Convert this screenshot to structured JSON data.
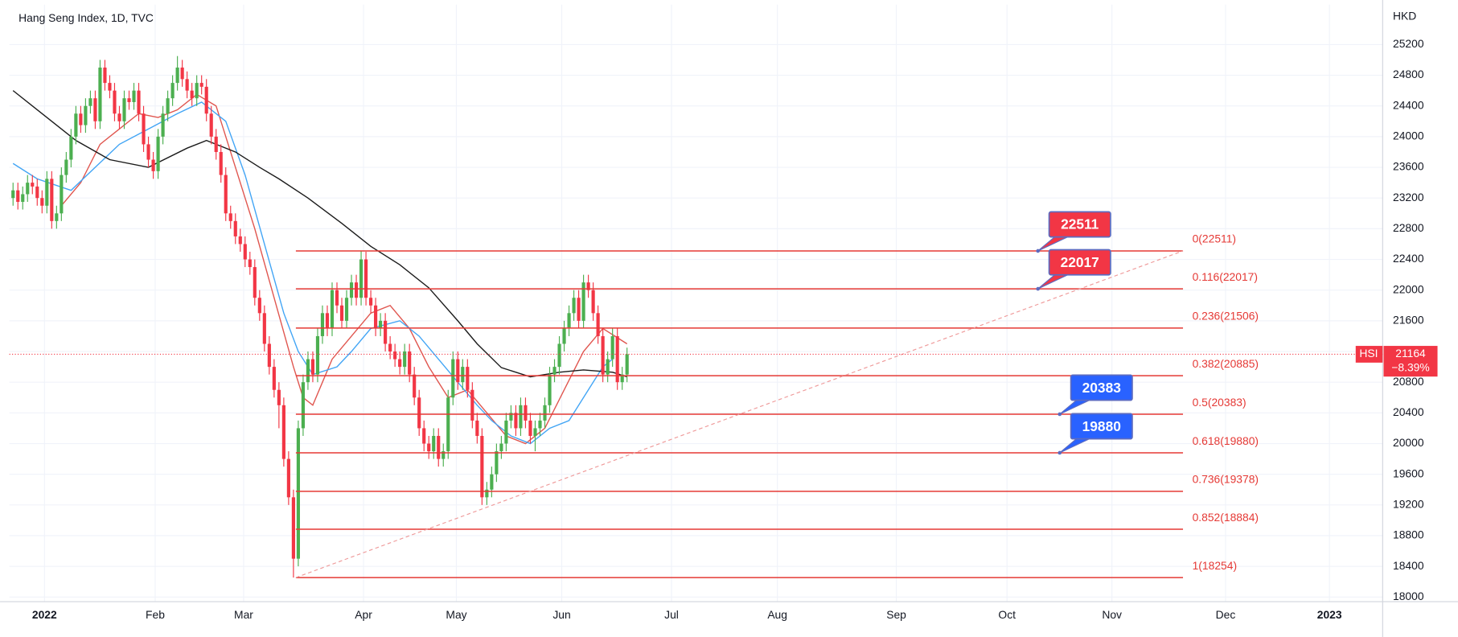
{
  "chart_data": {
    "type": "candlestick",
    "title": "Hang Seng Index, 1D, TVC",
    "currency": "HKD",
    "up_color": "#4caf50",
    "down_color": "#f23645",
    "grid": true,
    "xlim": [
      -0.77,
      283.3
    ],
    "ylim": [
      17940,
      25720
    ],
    "xticks": [
      {
        "value": 6.5,
        "label": "2022"
      },
      {
        "value": 29.4,
        "label": "Feb"
      },
      {
        "value": 47.7,
        "label": "Mar"
      },
      {
        "value": 72.5,
        "label": "Apr"
      },
      {
        "value": 91.7,
        "label": "May"
      },
      {
        "value": 113.5,
        "label": "Jun"
      },
      {
        "value": 136.2,
        "label": "Jul"
      },
      {
        "value": 158.1,
        "label": "Aug"
      },
      {
        "value": 182.7,
        "label": "Sep"
      },
      {
        "value": 205.6,
        "label": "Oct"
      },
      {
        "value": 227.3,
        "label": "Nov"
      },
      {
        "value": 250.8,
        "label": "Dec"
      },
      {
        "value": 272.3,
        "label": "2023"
      }
    ],
    "yticks": [
      18000,
      18400,
      18800,
      19200,
      19600,
      20000,
      20400,
      20800,
      21200,
      21600,
      22000,
      22400,
      22800,
      23200,
      23600,
      24000,
      24400,
      24800,
      25200
    ],
    "x": [
      0,
      1,
      2,
      3,
      4,
      5,
      6,
      7,
      8,
      9,
      10,
      11,
      12,
      13,
      14,
      15,
      16,
      17,
      18,
      19,
      20,
      21,
      22,
      23,
      24,
      25,
      26,
      27,
      28,
      29,
      30,
      31,
      32,
      33,
      34,
      35,
      36,
      37,
      38,
      39,
      40,
      41,
      42,
      43,
      44,
      45,
      46,
      47,
      48,
      49,
      50,
      51,
      52,
      53,
      54,
      55,
      56,
      57,
      58,
      59,
      60,
      61,
      62,
      63,
      64,
      65,
      66,
      67,
      68,
      69,
      70,
      71,
      72,
      73,
      74,
      75,
      76,
      77,
      78,
      79,
      80,
      81,
      82,
      83,
      84,
      85,
      86,
      87,
      88,
      89,
      90,
      91,
      92,
      93,
      94,
      95,
      96,
      97,
      98,
      99,
      100,
      101,
      102,
      103,
      104,
      105,
      106,
      107,
      108,
      109,
      110,
      111,
      112,
      113,
      114,
      115,
      116,
      117,
      118,
      119,
      120,
      121,
      122,
      123,
      124,
      125,
      126,
      127
    ],
    "open": [
      23200,
      23300,
      23150,
      23250,
      23400,
      23350,
      23200,
      23100,
      23450,
      22900,
      23000,
      23500,
      23700,
      24000,
      24300,
      24150,
      24400,
      24500,
      24200,
      24900,
      24700,
      24600,
      24300,
      24200,
      24500,
      24450,
      24600,
      24300,
      23900,
      23700,
      23550,
      24000,
      24300,
      24500,
      24700,
      24900,
      24750,
      24600,
      24500,
      24700,
      24650,
      24300,
      24000,
      23800,
      23500,
      23000,
      22900,
      22700,
      22600,
      22400,
      22300,
      21900,
      21700,
      21300,
      21000,
      20700,
      20500,
      19800,
      19300,
      18500,
      20200,
      20800,
      21100,
      20900,
      21400,
      21700,
      21500,
      22000,
      21800,
      21600,
      21900,
      22100,
      21900,
      22400,
      21900,
      21800,
      21500,
      21600,
      21300,
      21200,
      21100,
      21000,
      21200,
      20900,
      20600,
      20200,
      20000,
      19900,
      20100,
      19800,
      19900,
      20600,
      21100,
      20800,
      21000,
      20700,
      20300,
      20100,
      19300,
      19400,
      19600,
      19900,
      20000,
      20300,
      20400,
      20200,
      20500,
      20300,
      20100,
      20200,
      20300,
      20500,
      20900,
      21000,
      21300,
      21500,
      21700,
      21900,
      21600,
      22100,
      22000,
      21700,
      21400,
      20900,
      21100,
      21400,
      20800,
      20900
    ],
    "high": [
      23400,
      23400,
      23350,
      23500,
      23500,
      23450,
      23300,
      23550,
      23550,
      23100,
      23600,
      23800,
      24100,
      24400,
      24400,
      24500,
      24600,
      24600,
      25000,
      25000,
      24800,
      24700,
      24400,
      24600,
      24600,
      24700,
      24700,
      24400,
      24000,
      23800,
      24100,
      24400,
      24600,
      24800,
      25050,
      25000,
      24850,
      24700,
      24800,
      24800,
      24750,
      24400,
      24100,
      23900,
      23600,
      23100,
      23000,
      22800,
      22700,
      22500,
      22400,
      22000,
      21800,
      21400,
      21100,
      20800,
      20600,
      19900,
      19400,
      20300,
      20900,
      21200,
      21200,
      21500,
      21800,
      21800,
      22100,
      22100,
      21900,
      22000,
      22200,
      22200,
      22511,
      22500,
      22000,
      21900,
      21700,
      21700,
      21400,
      21300,
      21200,
      21300,
      21300,
      21000,
      20700,
      20300,
      20100,
      20200,
      20200,
      20000,
      20700,
      21200,
      21200,
      21100,
      21100,
      20800,
      20400,
      20200,
      19500,
      19700,
      20000,
      20100,
      20400,
      20500,
      20500,
      20600,
      20600,
      20400,
      20300,
      20400,
      20600,
      21000,
      21100,
      21400,
      21600,
      21800,
      22000,
      22000,
      22200,
      22200,
      22100,
      21800,
      21500,
      21200,
      21500,
      21500,
      21000,
      21250
    ],
    "low": [
      23100,
      23050,
      23050,
      23150,
      23250,
      23100,
      23000,
      23000,
      22800,
      22800,
      22900,
      23400,
      23600,
      23900,
      24050,
      24050,
      24300,
      24100,
      24100,
      24600,
      24500,
      24200,
      24100,
      24100,
      24350,
      24350,
      24200,
      23800,
      23600,
      23450,
      23450,
      23900,
      24200,
      24400,
      24600,
      24650,
      24500,
      24400,
      24400,
      24550,
      24200,
      23900,
      23700,
      23400,
      22900,
      22800,
      22600,
      22500,
      22300,
      22200,
      21800,
      21600,
      21200,
      20900,
      20600,
      20200,
      19700,
      19200,
      18254,
      18400,
      20100,
      20700,
      20800,
      20800,
      21300,
      21400,
      21400,
      21700,
      21500,
      21500,
      21800,
      21800,
      21800,
      21800,
      21700,
      21400,
      21400,
      21200,
      21100,
      21000,
      20900,
      20900,
      20800,
      20500,
      20100,
      19900,
      19800,
      19800,
      19700,
      19700,
      19800,
      20500,
      20700,
      20700,
      20600,
      20200,
      20000,
      19200,
      19200,
      19300,
      19500,
      19800,
      19900,
      20200,
      20100,
      20100,
      20200,
      20000,
      19900,
      20100,
      20200,
      20400,
      20800,
      20900,
      21200,
      21400,
      21600,
      21500,
      21500,
      21900,
      21600,
      21300,
      20800,
      20800,
      21000,
      20700,
      20700,
      20800
    ],
    "close": [
      23300,
      23150,
      23250,
      23400,
      23350,
      23200,
      23100,
      23450,
      22900,
      23000,
      23500,
      23700,
      24000,
      24300,
      24150,
      24400,
      24500,
      24200,
      24900,
      24700,
      24600,
      24300,
      24200,
      24500,
      24450,
      24600,
      24300,
      23900,
      23700,
      23550,
      24000,
      24300,
      24500,
      24700,
      24900,
      24750,
      24600,
      24500,
      24700,
      24650,
      24300,
      24000,
      23800,
      23500,
      23000,
      22900,
      22700,
      22600,
      22400,
      22300,
      21900,
      21700,
      21300,
      21000,
      20700,
      20500,
      19800,
      19300,
      18500,
      20200,
      20800,
      21100,
      20900,
      21400,
      21700,
      21500,
      22000,
      21800,
      21600,
      21900,
      22100,
      21900,
      22400,
      21900,
      21800,
      21500,
      21600,
      21300,
      21200,
      21100,
      21000,
      21200,
      20900,
      20600,
      20200,
      20000,
      19900,
      20100,
      19800,
      19900,
      20600,
      21100,
      20800,
      21000,
      20700,
      20300,
      20100,
      19300,
      19400,
      19600,
      19900,
      20000,
      20300,
      20400,
      20200,
      20500,
      20300,
      20100,
      20200,
      20300,
      20500,
      20900,
      21000,
      21300,
      21500,
      21700,
      21900,
      21600,
      22100,
      22000,
      21700,
      21400,
      20900,
      21100,
      21400,
      20800,
      20900,
      21164
    ],
    "moving_averages": [
      {
        "color": "#e0564f",
        "x": [
          10,
          14,
          18,
          22,
          26,
          30,
          34,
          38,
          42,
          46,
          50,
          54,
          58,
          60,
          62,
          64,
          66,
          70,
          74,
          78,
          82,
          86,
          90,
          94,
          98,
          102,
          106,
          110,
          114,
          118,
          122,
          127
        ],
        "values": [
          23100,
          23400,
          23900,
          24100,
          24300,
          24250,
          24350,
          24550,
          24400,
          23600,
          22800,
          21900,
          21000,
          20600,
          20500,
          20800,
          21100,
          21400,
          21700,
          21800,
          21500,
          21000,
          20600,
          20700,
          20400,
          20100,
          20000,
          20200,
          20700,
          21200,
          21500,
          21300
        ]
      },
      {
        "color": "#42a5f5",
        "x": [
          0,
          5,
          12,
          17,
          22,
          28,
          34,
          39,
          44,
          48,
          52,
          56,
          59,
          62,
          67,
          70,
          74,
          80,
          84,
          88,
          92,
          96,
          99,
          103,
          107,
          111,
          115,
          118,
          122,
          124
        ],
        "values": [
          23650,
          23450,
          23300,
          23600,
          23900,
          24100,
          24300,
          24450,
          24200,
          23500,
          22600,
          21700,
          21200,
          20900,
          21000,
          21200,
          21500,
          21600,
          21400,
          21100,
          20800,
          20500,
          20300,
          20100,
          20000,
          20200,
          20300,
          20600,
          21000,
          21100
        ]
      },
      {
        "color": "#1a1a1a",
        "x": [
          0,
          8,
          13,
          20,
          28,
          36,
          40,
          46,
          51,
          55,
          61,
          68,
          74,
          80,
          86,
          92,
          96,
          101,
          107,
          113,
          118,
          124,
          127
        ],
        "values": [
          24600,
          24200,
          23950,
          23700,
          23600,
          23850,
          23950,
          23800,
          23600,
          23450,
          23200,
          22870,
          22570,
          22330,
          22030,
          21600,
          21300,
          20990,
          20870,
          20930,
          20960,
          20930,
          20870
        ]
      }
    ],
    "fibonacci": {
      "color": "#e53935",
      "x": [
        58.5,
        242
      ],
      "levels": [
        22511,
        22017,
        21506,
        20885,
        20383,
        19880,
        19378,
        18884,
        18254
      ],
      "labels": [
        "0(22511)",
        "0.116(22017)",
        "0.236(21506)",
        "0.382(20885)",
        "0.5(20383)",
        "0.618(19880)",
        "0.736(19378)",
        "0.852(18884)",
        "1(18254)"
      ]
    },
    "trendline": {
      "color": "#ef9a9a",
      "x": [
        58.5,
        242
      ],
      "values": [
        18254,
        22511
      ]
    },
    "callouts": [
      {
        "x": 212,
        "value": 22511,
        "color": "#f23645"
      },
      {
        "x": 212,
        "value": 22017,
        "color": "#f23645"
      },
      {
        "x": 216.5,
        "value": 20383,
        "color": "#2962ff"
      },
      {
        "x": 216.5,
        "value": 19880,
        "color": "#2962ff"
      }
    ],
    "last_price": {
      "symbol": "HSI",
      "value": 21164,
      "change": "−8.39%",
      "color": "#f23645"
    }
  }
}
